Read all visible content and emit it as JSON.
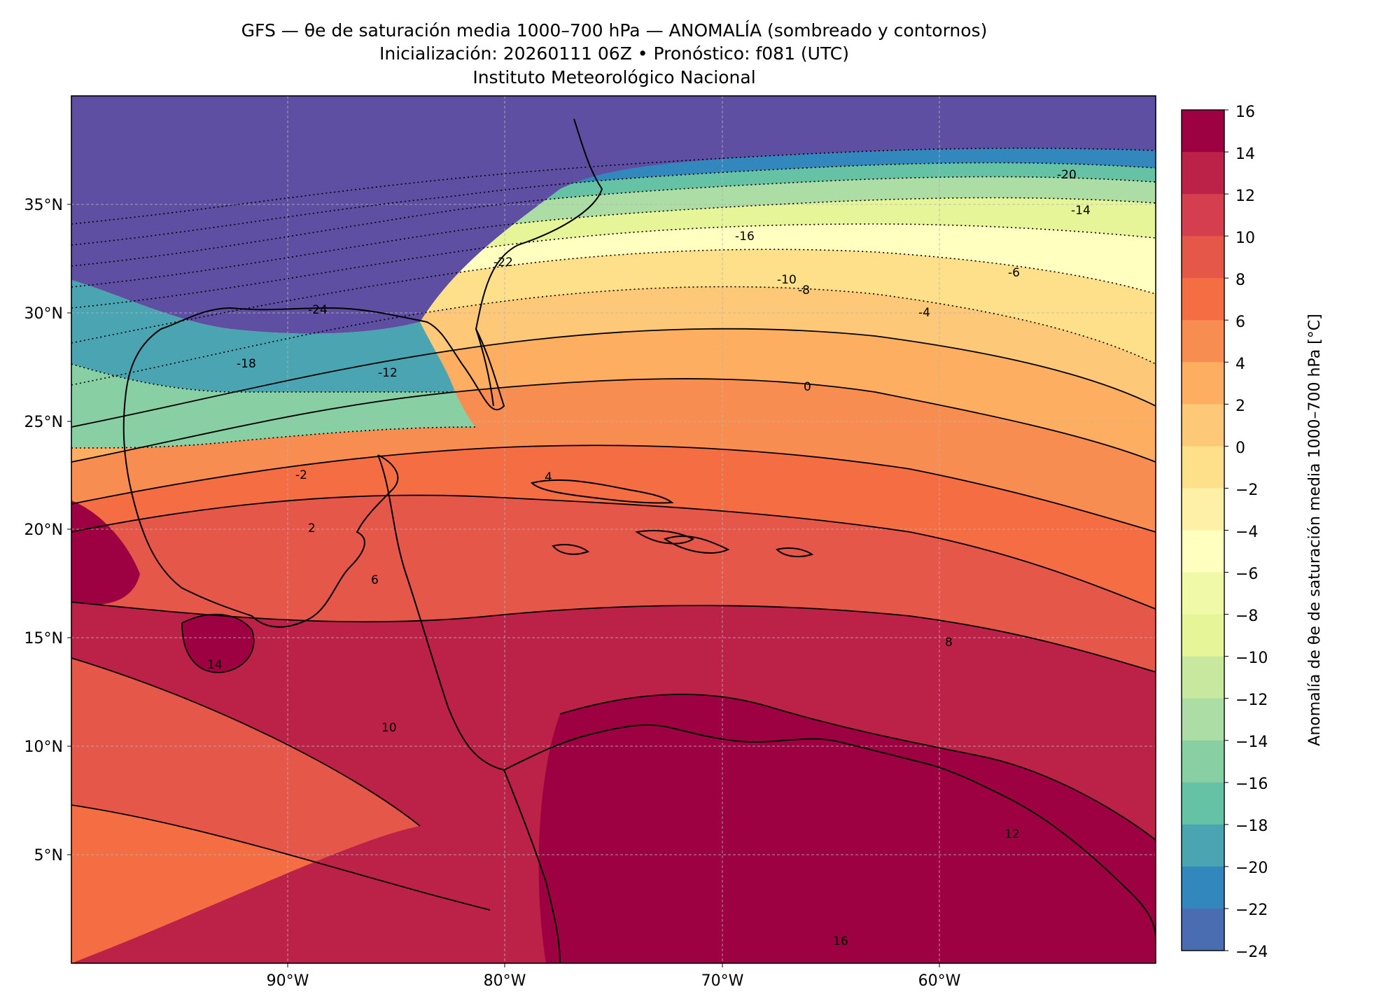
{
  "title": {
    "line1": "GFS — θe de saturación media 1000–700 hPa — ANOMALÍA (sombreado y contornos)",
    "line2": "Inicialización: 20260111 06Z   •   Pronóstico: f081 (UTC)",
    "line3": "Instituto Meteorológico Nacional"
  },
  "map": {
    "extent": {
      "lon_min": -99.7,
      "lon_max": -49.9,
      "lat_min": 0,
      "lat_max": 40
    },
    "lat_ticks": [
      {
        "value": 35,
        "label": "35°N"
      },
      {
        "value": 30,
        "label": "30°N"
      },
      {
        "value": 25,
        "label": "25°N"
      },
      {
        "value": 20,
        "label": "20°N"
      },
      {
        "value": 15,
        "label": "15°N"
      },
      {
        "value": 10,
        "label": "10°N"
      },
      {
        "value": 5,
        "label": "5°N"
      }
    ],
    "lon_ticks": [
      {
        "value": -90,
        "label": "90°W"
      },
      {
        "value": -80,
        "label": "80°W"
      },
      {
        "value": -70,
        "label": "70°W"
      },
      {
        "value": -60,
        "label": "60°W"
      }
    ],
    "gridlines": true,
    "contour_labels": [
      "-24",
      "-22",
      "-20",
      "-18",
      "-16",
      "-14",
      "-12",
      "-10",
      "-8",
      "-6",
      "-4",
      "-2",
      "0",
      "2",
      "4",
      "6",
      "8",
      "10",
      "12",
      "14",
      "16"
    ]
  },
  "colorbar": {
    "label": "Anomalía de θe de saturación media 1000–700 hPa [°C]",
    "ticks": [
      "16",
      "14",
      "12",
      "10",
      "8",
      "6",
      "4",
      "2",
      "0",
      "−2",
      "−4",
      "−6",
      "−8",
      "−10",
      "−12",
      "−14",
      "−16",
      "−18",
      "−20",
      "−22",
      "−24"
    ],
    "colors": [
      "#9e0142",
      "#bc2248",
      "#d53e4f",
      "#e55748",
      "#f46d43",
      "#f88d51",
      "#fdae61",
      "#fdc877",
      "#fee08b",
      "#fef0a7",
      "#ffffbf",
      "#f0f9a7",
      "#e6f598",
      "#c7e89e",
      "#abdda4",
      "#88cfa4",
      "#66c2a5",
      "#4ba4b1",
      "#3288bd",
      "#4a6db1",
      "#5e4fa2"
    ]
  }
}
